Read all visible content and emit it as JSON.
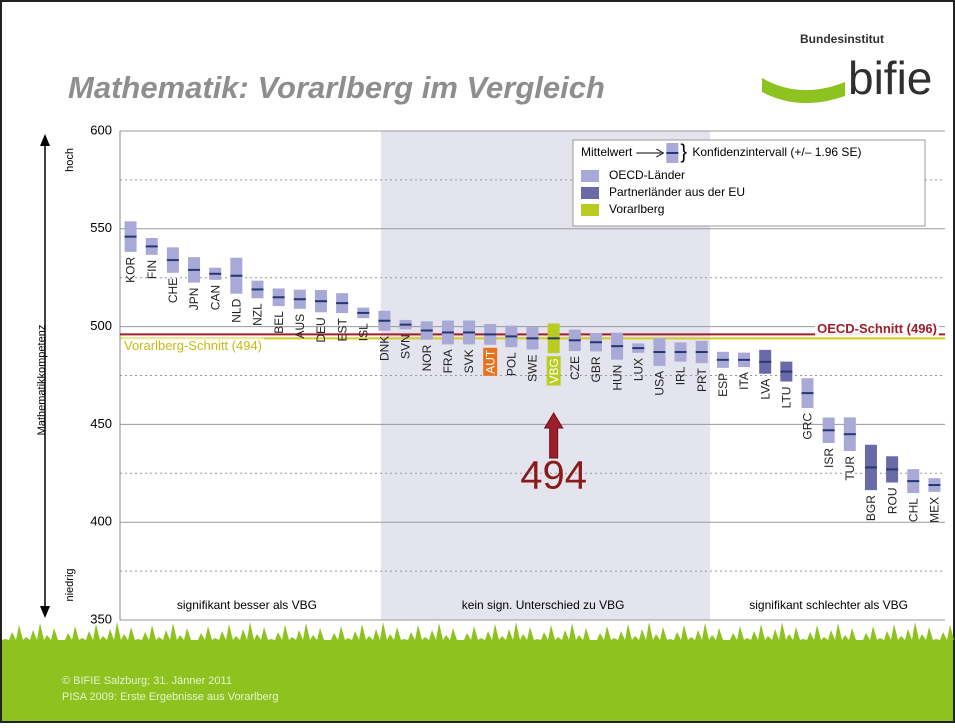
{
  "header": {
    "title": "Mathematik: Vorarlberg im Vergleich",
    "logo_top": "Bundesinstitut",
    "logo_name": "bifie"
  },
  "chart_data": {
    "type": "interval",
    "y_label": "Mathematikkompetenz",
    "y_high": "hoch",
    "y_low": "niedrig",
    "categories": [
      "KOR",
      "FIN",
      "CHE",
      "JPN",
      "CAN",
      "NLD",
      "NZL",
      "BEL",
      "AUS",
      "DEU",
      "EST",
      "ISL",
      "DNK",
      "SVN",
      "NOR",
      "FRA",
      "SVK",
      "AUT",
      "POL",
      "SWE",
      "VBG",
      "CZE",
      "GBR",
      "HUN",
      "LUX",
      "USA",
      "IRL",
      "PRT",
      "ESP",
      "ITA",
      "LVA",
      "LTU",
      "GRC",
      "ISR",
      "TUR",
      "BGR",
      "ROU",
      "CHL",
      "MEX"
    ],
    "values": [
      546,
      541,
      534,
      529,
      527,
      526,
      519,
      515,
      514,
      513,
      512,
      507,
      503,
      501,
      498,
      497,
      497,
      496,
      495,
      494,
      494,
      493,
      492,
      490,
      489,
      487,
      487,
      487,
      483,
      483,
      482,
      477,
      466,
      447,
      445,
      428,
      427,
      421,
      419
    ],
    "low": [
      538.2,
      536.7,
      527.5,
      522.5,
      523.9,
      516.8,
      514.5,
      510.5,
      509.1,
      507.3,
      506.9,
      504.3,
      497.9,
      498.6,
      493.3,
      490.9,
      490.9,
      490.7,
      489.5,
      488.3,
      486.4,
      487.5,
      487.3,
      483.1,
      486.6,
      479.9,
      482.1,
      481.3,
      478.9,
      479.3,
      475.9,
      471.9,
      458.4,
      440.5,
      436.4,
      416.4,
      420.3,
      414.9,
      415.5
    ],
    "high": [
      553.8,
      545.3,
      540.5,
      535.5,
      530.1,
      535.2,
      523.5,
      519.5,
      518.9,
      518.7,
      517.1,
      509.7,
      508.1,
      503.4,
      502.7,
      503.1,
      503.1,
      501.3,
      500.5,
      499.7,
      501.6,
      498.5,
      496.7,
      496.9,
      491.4,
      494.1,
      491.9,
      492.7,
      487.1,
      486.7,
      488.1,
      482.1,
      473.6,
      453.5,
      453.6,
      439.6,
      433.7,
      427.1,
      422.5
    ],
    "colors": [
      "#a8a9d6",
      "#a8a9d6",
      "#a8a9d6",
      "#a8a9d6",
      "#a8a9d6",
      "#a8a9d6",
      "#a8a9d6",
      "#a8a9d6",
      "#a8a9d6",
      "#a8a9d6",
      "#a8a9d6",
      "#a8a9d6",
      "#a8a9d6",
      "#a8a9d6",
      "#a8a9d6",
      "#a8a9d6",
      "#a8a9d6",
      "#a8a9d6",
      "#a8a9d6",
      "#a8a9d6",
      "#b8cc22",
      "#a8a9d6",
      "#a8a9d6",
      "#a8a9d6",
      "#a8a9d6",
      "#a8a9d6",
      "#a8a9d6",
      "#a8a9d6",
      "#a8a9d6",
      "#a8a9d6",
      "#6b6aa8",
      "#6b6aa8",
      "#a8a9d6",
      "#a8a9d6",
      "#a8a9d6",
      "#6b6aa8",
      "#6b6aa8",
      "#a8a9d6",
      "#a8a9d6"
    ],
    "label_backgrounds": [
      null,
      null,
      null,
      null,
      null,
      null,
      null,
      null,
      null,
      null,
      null,
      null,
      null,
      null,
      null,
      null,
      null,
      "#e8731c",
      null,
      null,
      "#b8cc22",
      null,
      null,
      null,
      null,
      null,
      null,
      null,
      null,
      null,
      null,
      null,
      null,
      null,
      null,
      null,
      null,
      null,
      null
    ],
    "mean_color": "#263672",
    "ylim": [
      350,
      600
    ],
    "yticks": [
      350,
      400,
      450,
      500,
      550,
      600
    ],
    "minor_yticks": [
      375,
      425,
      475,
      525,
      575
    ],
    "reference_lines": [
      {
        "label": "OECD-Schnitt (496)",
        "value": 496,
        "color": "#a01e2c"
      },
      {
        "label": "Vorarlberg-Schnitt (494)",
        "value": 494,
        "color": "#d8c81a"
      }
    ],
    "region_labels": [
      "signifikant besser als VBG",
      "kein sign. Unterschied zu VBG",
      "signifikant schlechter als VBG"
    ],
    "legend": {
      "mean": "Mittelwert",
      "ci": "Konfidenzintervall (+/– 1.96 SE)",
      "entries": [
        {
          "name": "OECD-Länder",
          "color": "#a8a9d6"
        },
        {
          "name": "Partnerländer aus der EU",
          "color": "#6b6aa8"
        },
        {
          "name": "Vorarlberg",
          "color": "#b8cc22"
        }
      ]
    },
    "annotation": "494"
  },
  "footer": {
    "line1": "© BIFIE Salzburg; 31. Jänner 2011",
    "line2": "PISA 2009: Erste Ergebnisse aus Vorarlberg"
  }
}
